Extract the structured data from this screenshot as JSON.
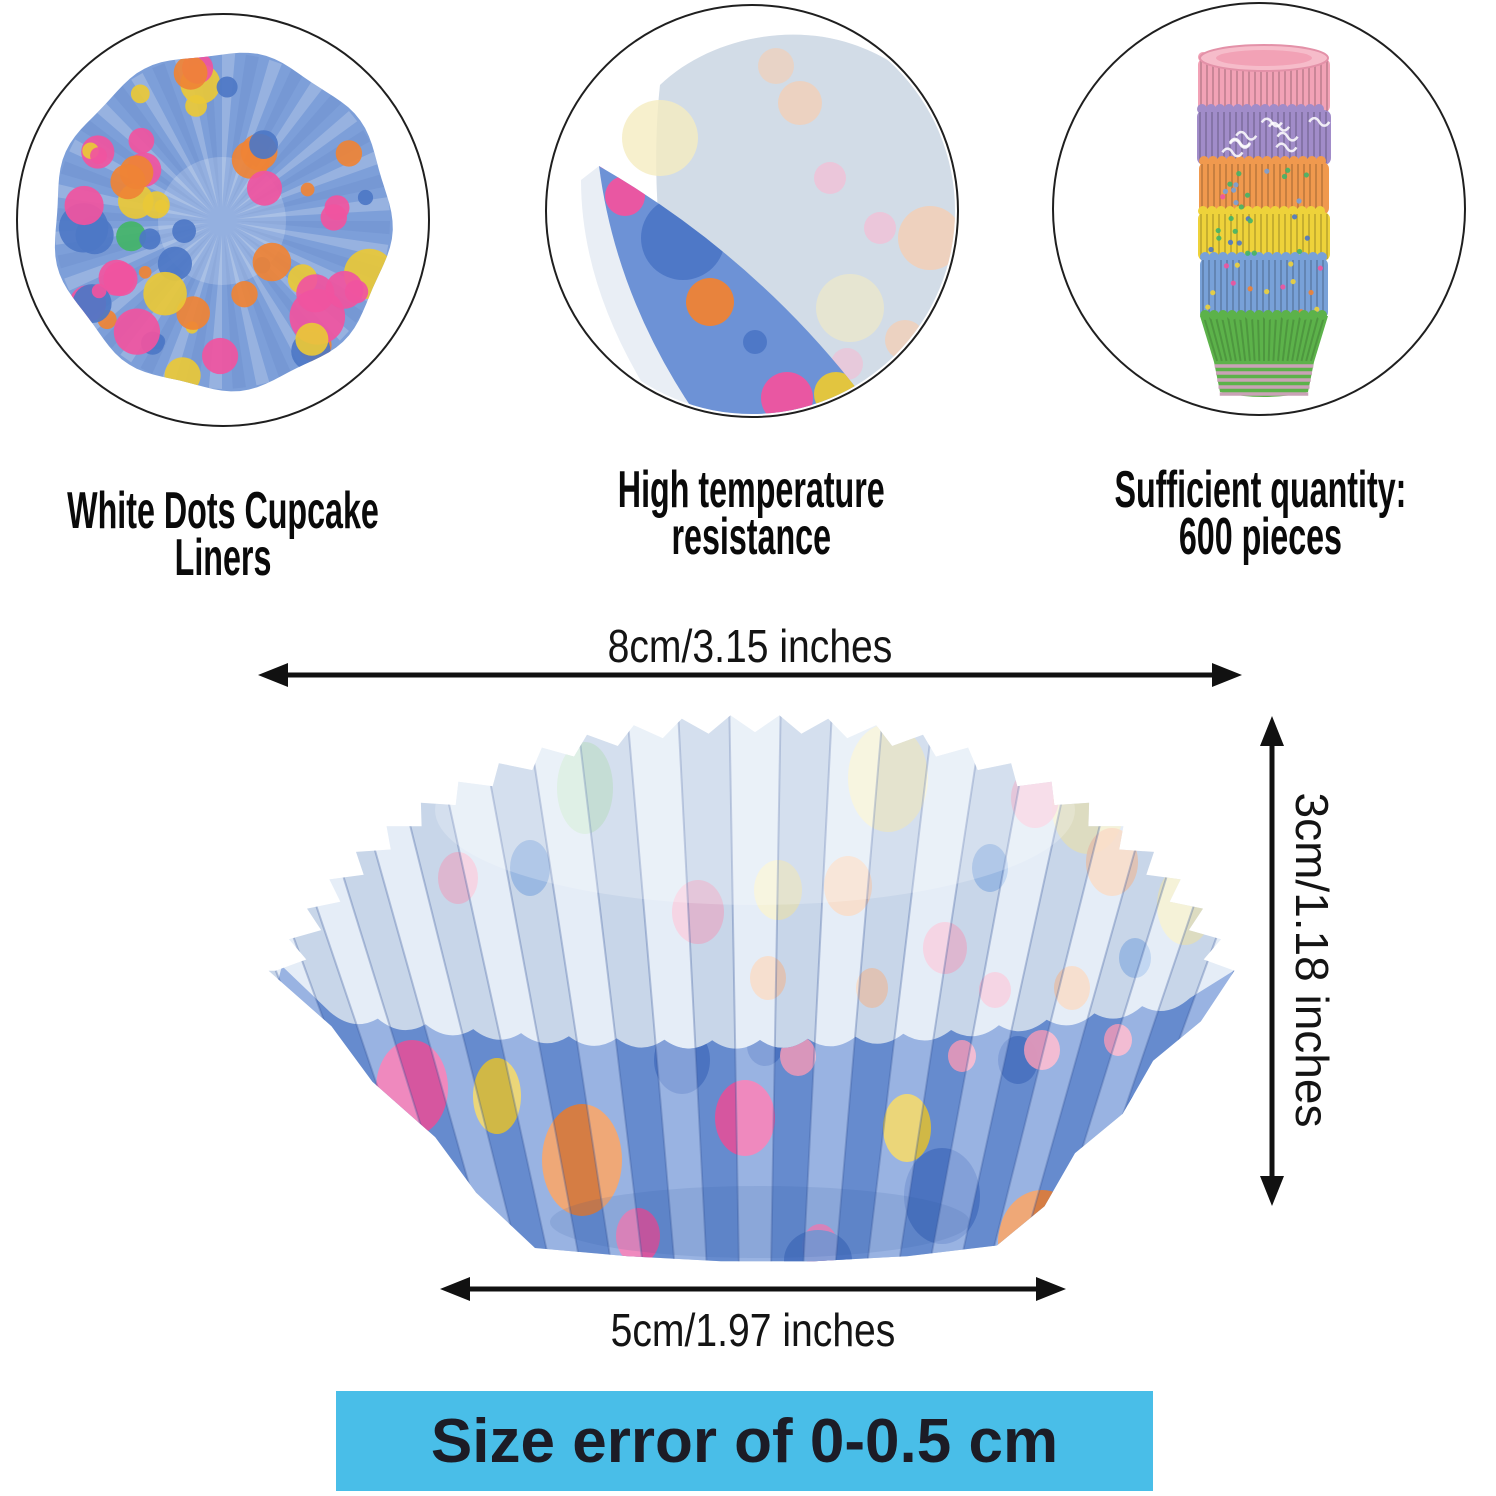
{
  "features": [
    {
      "caption": "White Dots Cupcake Liners",
      "image": "polka-dot-liner-top-view"
    },
    {
      "caption": "High temperature\nresistance",
      "image": "folded-liner-sheet"
    },
    {
      "caption": "Sufficient quantity:\n600 pieces",
      "image": "stacked-cupcake-liners"
    }
  ],
  "dimensions": {
    "top_diameter": "8cm/3.15 inches",
    "height": "3cm/1.18 inches",
    "base_diameter": "5cm/1.97 inches"
  },
  "size_note": "Size error of 0-0.5 cm",
  "colors": {
    "note_background": "#49bee8",
    "note_text": "#1c1c26",
    "arrow": "#111111",
    "liner_blue": "#7d9fd9",
    "liner_front_blue": "#6d92d6",
    "liner_inside": "#dae6f4",
    "dot_yellow": "#e9c837",
    "dot_orange": "#ef8335",
    "dot_pink": "#f0549f",
    "dot_blue": "#4d77c6",
    "dot_green": "#43b468",
    "pastel_cream": "#f5ecc0",
    "pastel_pink": "#f5bcd4",
    "pastel_peach": "#f7cdb0",
    "pastel_green": "#bfe3cb",
    "pastel_blue": "#9fc0ea",
    "stack_pink": "#f2a2b6",
    "stack_purple": "#a18cc9",
    "stack_orange": "#f0994e",
    "stack_yellow": "#eed23a",
    "stack_blue": "#78a1d8",
    "stack_green": "#5cb24a",
    "sheet_gray": "#c6d2e0"
  }
}
